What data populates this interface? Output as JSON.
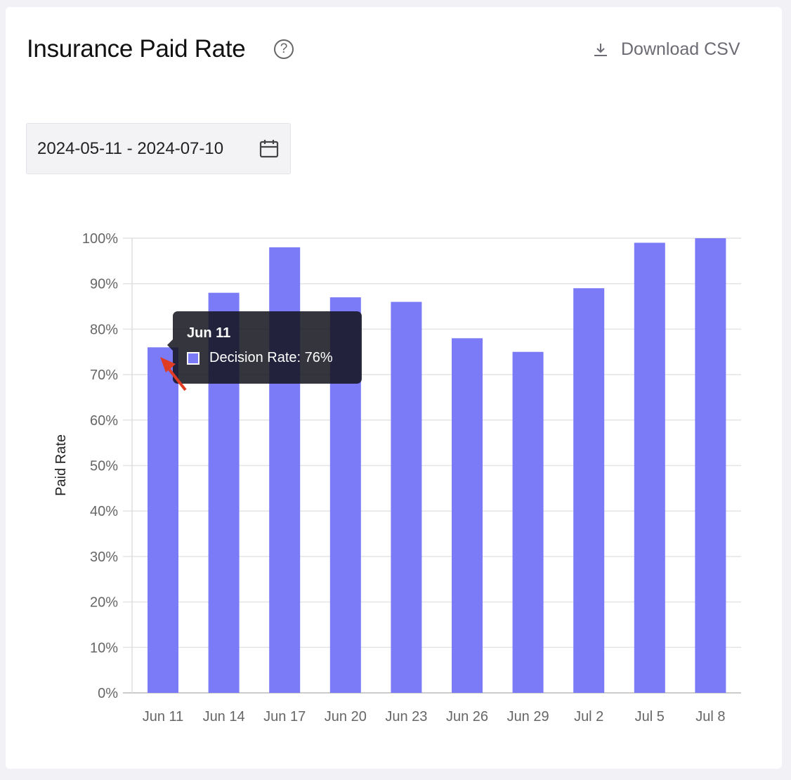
{
  "header": {
    "title": "Insurance Paid Rate",
    "help_icon": "question-circle-icon",
    "download_label": "Download CSV",
    "download_icon": "download-icon"
  },
  "date_range": {
    "value": "2024-05-11 - 2024-07-10",
    "icon": "calendar-icon"
  },
  "tooltip": {
    "title": "Jun 11",
    "label": "Decision Rate: 76%"
  },
  "chart_data": {
    "type": "bar",
    "title": "Insurance Paid Rate",
    "xlabel": "",
    "ylabel": "Paid Rate",
    "categories": [
      "Jun 11",
      "Jun 14",
      "Jun 17",
      "Jun 20",
      "Jun 23",
      "Jun 26",
      "Jun 29",
      "Jul 2",
      "Jul 5",
      "Jul 8"
    ],
    "series": [
      {
        "name": "Decision Rate",
        "values": [
          76,
          88,
          98,
          87,
          86,
          78,
          75,
          89,
          99,
          100
        ],
        "color": "#7b7bf7"
      }
    ],
    "ylim": [
      0,
      100
    ],
    "yticks": [
      "0%",
      "10%",
      "20%",
      "30%",
      "40%",
      "50%",
      "60%",
      "70%",
      "80%",
      "90%",
      "100%"
    ],
    "grid": true,
    "legend": "none"
  }
}
